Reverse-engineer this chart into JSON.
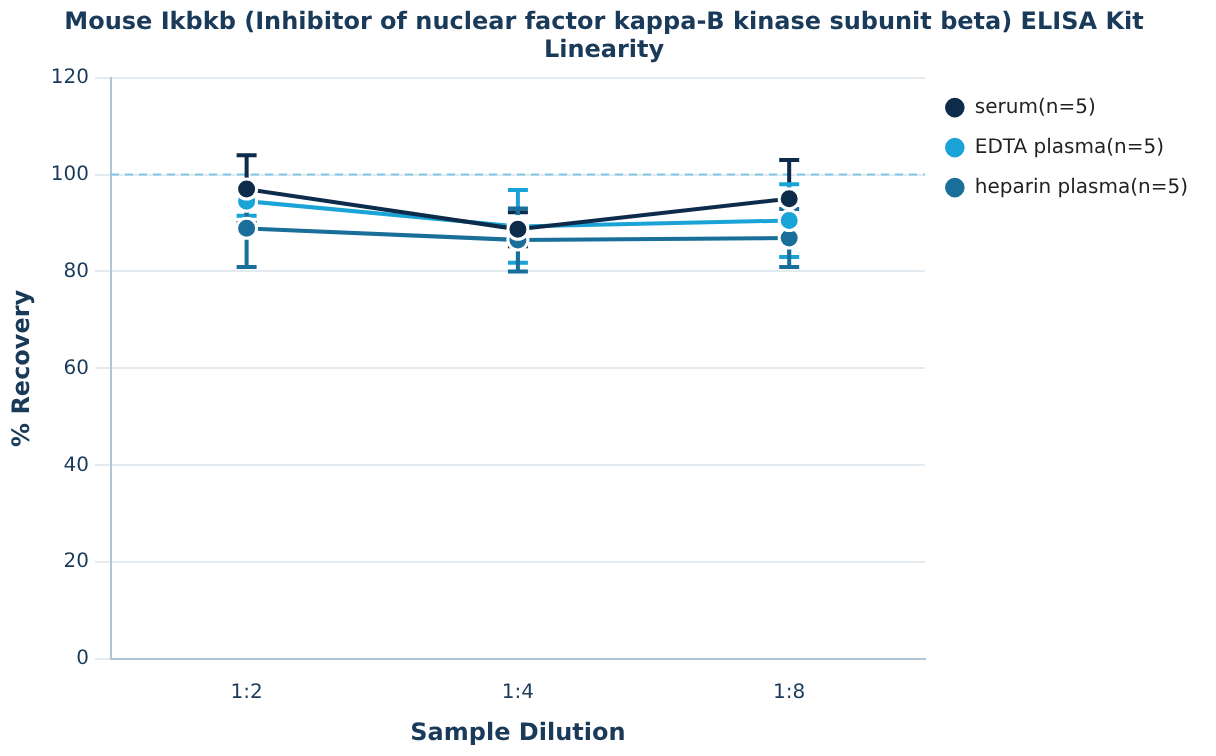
{
  "chart_data": {
    "type": "line",
    "title": "Mouse Ikbkb (Inhibitor of nuclear factor kappa-B kinase subunit beta) ELISA Kit\nLinearity",
    "xlabel": "Sample Dilution",
    "ylabel": "% Recovery",
    "categories": [
      "1:2",
      "1:4",
      "1:8"
    ],
    "series": [
      {
        "name": "serum(n=5)",
        "color": "#0d2b4a",
        "values": [
          97,
          88.7,
          95
        ],
        "errors": [
          7,
          3.5,
          8
        ]
      },
      {
        "name": "EDTA plasma(n=5)",
        "color": "#1aa3d6",
        "values": [
          94.5,
          89.3,
          90.5
        ],
        "errors": [
          3,
          7.5,
          7.5
        ]
      },
      {
        "name": "heparin plasma(n=5)",
        "color": "#1a6f9a",
        "values": [
          88.9,
          86.5,
          86.9
        ],
        "errors": [
          8,
          6.5,
          6
        ]
      }
    ],
    "ylim": [
      0,
      120
    ],
    "yticks": [
      0,
      20,
      40,
      60,
      80,
      100,
      120
    ],
    "grid": "y",
    "legend": "top right",
    "marker": "circle",
    "line_style": "solid",
    "ref_lines": [
      {
        "axis": "y",
        "value": 100,
        "color": "#7ec8e3",
        "line_style": "dashed"
      }
    ]
  }
}
